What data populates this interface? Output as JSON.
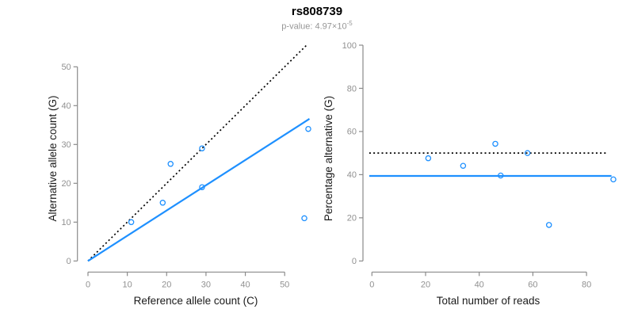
{
  "figure": {
    "title": "rs808739",
    "subtitle_prefix": "p-value: 4.97×10",
    "subtitle_exponent": "-5"
  },
  "colors": {
    "accent_blue": "#1E90FF",
    "dotted_line_black": "#000000",
    "axis_line_gray": "#8a8a8a",
    "tick_label_gray": "#919191",
    "axis_title_dark": "#1a1a1a",
    "subtitle_gray": "#969696"
  },
  "chart_data": [
    {
      "type": "scatter",
      "title": "",
      "xlabel": "Reference allele count (C)",
      "ylabel": "Alternative allele count (G)",
      "xticks": [
        0,
        10,
        20,
        30,
        40,
        50
      ],
      "yticks": [
        0,
        10,
        20,
        30,
        40,
        50
      ],
      "xlim": [
        0,
        56.5
      ],
      "ylim": [
        0,
        55.8
      ],
      "grid": false,
      "legend": "none",
      "points": [
        [
          11,
          10
        ],
        [
          19,
          15
        ],
        [
          21,
          25
        ],
        [
          29,
          19
        ],
        [
          29,
          29
        ],
        [
          55,
          11
        ],
        [
          56,
          34
        ]
      ],
      "lines": [
        {
          "name": "identity-line",
          "style": "dotted",
          "points": [
            [
              0,
              0
            ],
            [
              55.8,
              55.8
            ]
          ]
        },
        {
          "name": "fit-line",
          "style": "solid",
          "points": [
            [
              0,
              0
            ],
            [
              56.3,
              36.6
            ]
          ]
        }
      ]
    },
    {
      "type": "scatter",
      "title": "",
      "xlabel": "Total number of reads",
      "ylabel": "Percentage alternative (G)",
      "xticks": [
        0,
        20,
        40,
        60,
        80
      ],
      "yticks": [
        0,
        20,
        40,
        60,
        80,
        100
      ],
      "xlim": [
        -1,
        90.5
      ],
      "ylim": [
        0,
        100
      ],
      "grid": false,
      "legend": "none",
      "points": [
        [
          21,
          47.6
        ],
        [
          34,
          44.1
        ],
        [
          46,
          54.3
        ],
        [
          48,
          39.6
        ],
        [
          58,
          50
        ],
        [
          66,
          16.7
        ],
        [
          90,
          37.8
        ]
      ],
      "lines": [
        {
          "name": "expected-50pct-line",
          "style": "dotted",
          "points": [
            [
              -1,
              50
            ],
            [
              88,
              50
            ]
          ]
        },
        {
          "name": "mean-percentage-line",
          "style": "solid",
          "points": [
            [
              -1,
              39.4
            ],
            [
              89.3,
              39.4
            ]
          ]
        }
      ]
    }
  ]
}
